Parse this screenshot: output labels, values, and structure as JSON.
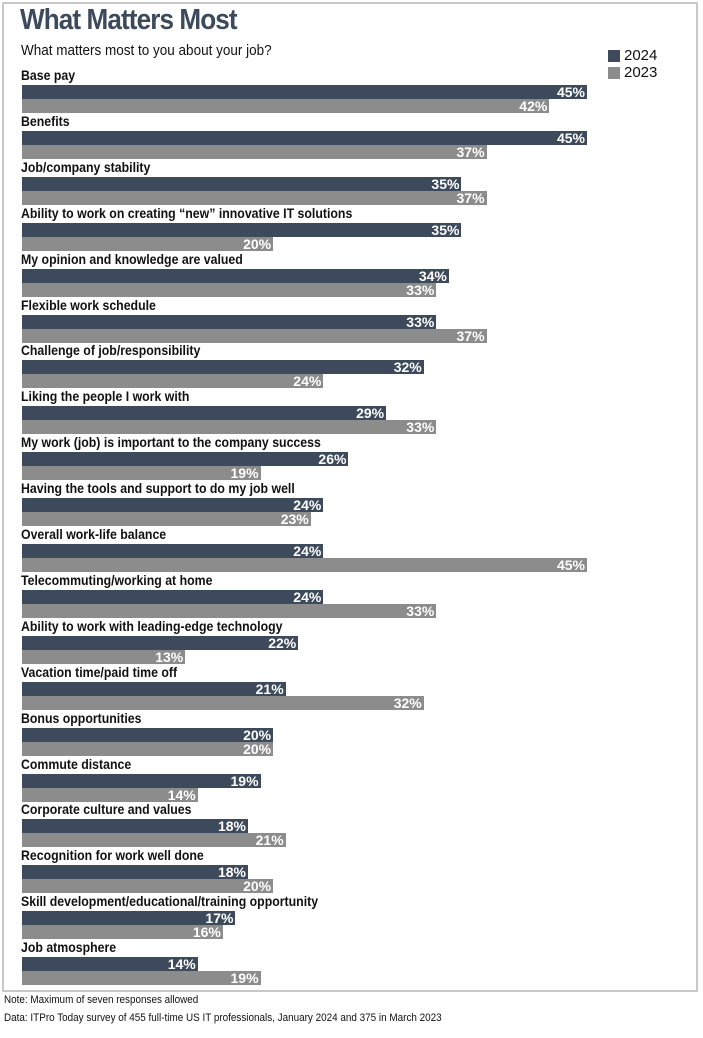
{
  "chart_data": {
    "type": "bar",
    "orientation": "horizontal",
    "title": "What Matters Most",
    "subtitle": "What matters most to you about your job?",
    "unit": "%",
    "xlim": [
      0,
      45
    ],
    "grid": false,
    "legend_placement": "top-right",
    "categories": [
      "Base pay",
      "Benefits",
      "Job/company stability",
      "Ability to work on creating “new” innovative IT solutions",
      "My opinion and knowledge are valued",
      "Flexible work schedule",
      "Challenge of job/responsibility",
      "Liking the people I work with",
      "My work (job) is important to the company success",
      "Having the tools and support to do my job well",
      "Overall work-life balance",
      "Telecommuting/working at home",
      "Ability to work with leading-edge technology",
      "Vacation time/paid time off",
      "Bonus opportunities",
      "Commute distance",
      "Corporate culture and values",
      "Recognition for work well done",
      "Skill development/educational/training opportunity",
      "Job atmosphere"
    ],
    "series": [
      {
        "name": "2024",
        "color": "#3d4a5c",
        "values": [
          45,
          45,
          35,
          35,
          34,
          33,
          32,
          29,
          26,
          24,
          24,
          24,
          22,
          21,
          20,
          19,
          18,
          18,
          17,
          14
        ]
      },
      {
        "name": "2023",
        "color": "#8c8c8c",
        "values": [
          42,
          37,
          37,
          20,
          33,
          37,
          24,
          33,
          19,
          23,
          45,
          33,
          13,
          32,
          20,
          14,
          21,
          20,
          16,
          19
        ]
      }
    ]
  },
  "notes": {
    "note": "Note: Maximum of seven responses allowed",
    "source": "Data: ITPro Today survey of 455 full-time US IT professionals, January 2024 and 375 in March 2023"
  }
}
